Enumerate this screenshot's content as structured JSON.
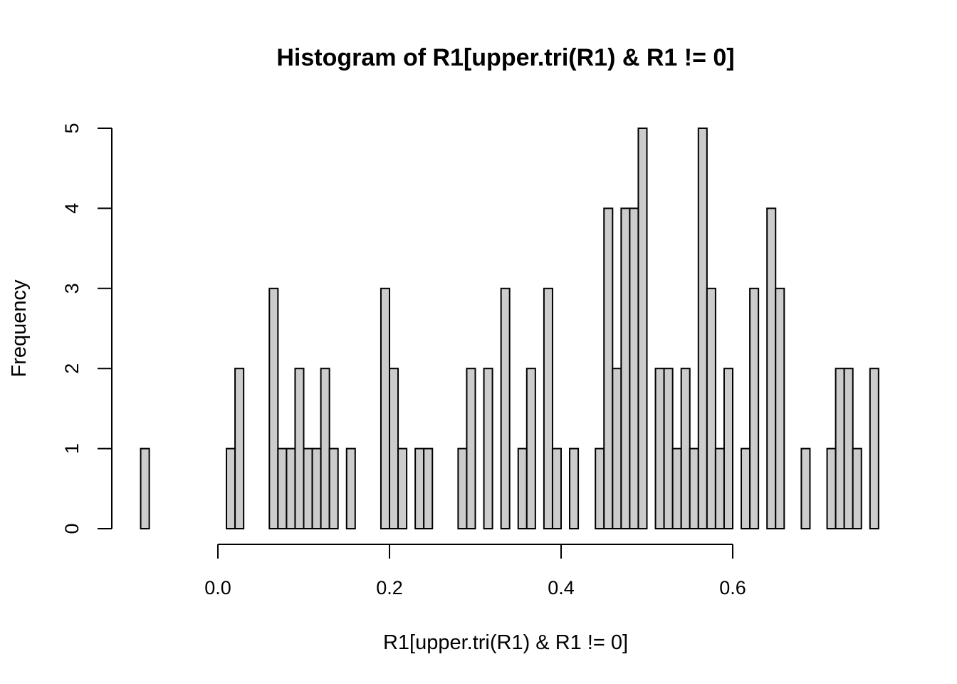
{
  "chart_data": {
    "type": "bar",
    "title": "Histogram of R1[upper.tri(R1) & R1 != 0]",
    "xlabel": "R1[upper.tri(R1) & R1 != 0]",
    "ylabel": "Frequency",
    "x_breaks_start": -0.09,
    "bin_width": 0.01,
    "counts": [
      1,
      0,
      0,
      0,
      0,
      0,
      0,
      0,
      0,
      0,
      1,
      2,
      0,
      0,
      0,
      3,
      1,
      1,
      2,
      1,
      1,
      2,
      1,
      0,
      1,
      0,
      0,
      0,
      3,
      2,
      1,
      0,
      1,
      1,
      0,
      0,
      0,
      1,
      2,
      0,
      2,
      0,
      3,
      0,
      1,
      2,
      0,
      3,
      1,
      0,
      1,
      0,
      0,
      1,
      4,
      2,
      4,
      4,
      5,
      0,
      2,
      2,
      1,
      2,
      1,
      5,
      3,
      1,
      2,
      0,
      1,
      3,
      0,
      4,
      3,
      0,
      0,
      1,
      0,
      0,
      1,
      2,
      2,
      1,
      0,
      2
    ],
    "x_ticks": [
      0.0,
      0.2,
      0.4,
      0.6
    ],
    "x_tick_labels": [
      "0.0",
      "0.2",
      "0.4",
      "0.6"
    ],
    "y_ticks": [
      0,
      1,
      2,
      3,
      4,
      5
    ],
    "y_tick_labels": [
      "0",
      "1",
      "2",
      "3",
      "4",
      "5"
    ],
    "ylim": [
      0,
      5
    ],
    "grid": false,
    "bar_fill": "#cccccc",
    "bar_stroke": "#000000"
  }
}
